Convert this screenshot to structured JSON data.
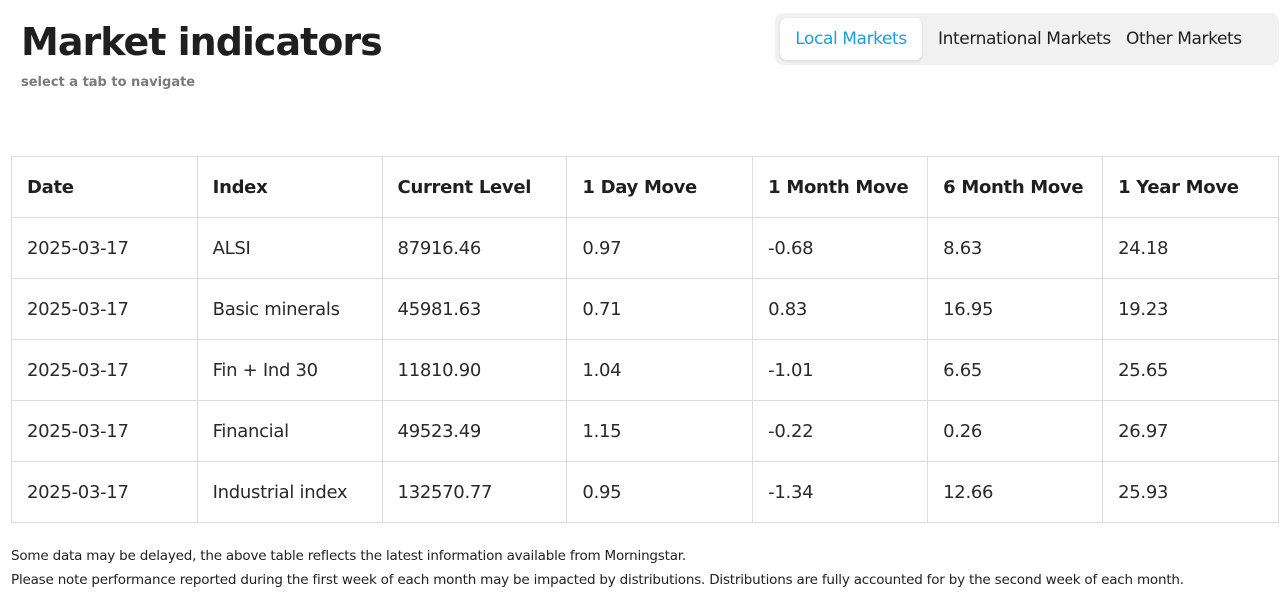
{
  "header": {
    "title": "Market indicators",
    "subtitle": "select a tab to navigate"
  },
  "tabs": [
    {
      "label": "Local Markets",
      "active": true
    },
    {
      "label": "International Markets",
      "active": false
    },
    {
      "label": "Other Markets",
      "active": false
    }
  ],
  "colors": {
    "active_tab": "#1a9fd9",
    "tab_bar_bg": "#f1f1f1",
    "border": "#dcdcdc"
  },
  "table": {
    "headers": [
      "Date",
      "Index",
      "Current Level",
      "1 Day Move",
      "1 Month Move",
      "6 Month Move",
      "1 Year Move"
    ],
    "rows": [
      [
        "2025-03-17",
        "ALSI",
        "87916.46",
        "0.97",
        "-0.68",
        "8.63",
        "24.18"
      ],
      [
        "2025-03-17",
        "Basic minerals",
        "45981.63",
        "0.71",
        "0.83",
        "16.95",
        "19.23"
      ],
      [
        "2025-03-17",
        "Fin + Ind 30",
        "11810.90",
        "1.04",
        "-1.01",
        "6.65",
        "25.65"
      ],
      [
        "2025-03-17",
        "Financial",
        "49523.49",
        "1.15",
        "-0.22",
        "0.26",
        "26.97"
      ],
      [
        "2025-03-17",
        "Industrial index",
        "132570.77",
        "0.95",
        "-1.34",
        "12.66",
        "25.93"
      ]
    ]
  },
  "footer": {
    "note1": "Some data may be delayed, the above table reflects the latest information available from Morningstar.",
    "note2": "Please note performance reported during the first week of each month may be impacted by distributions. Distributions are fully accounted for by the second week of each month."
  }
}
